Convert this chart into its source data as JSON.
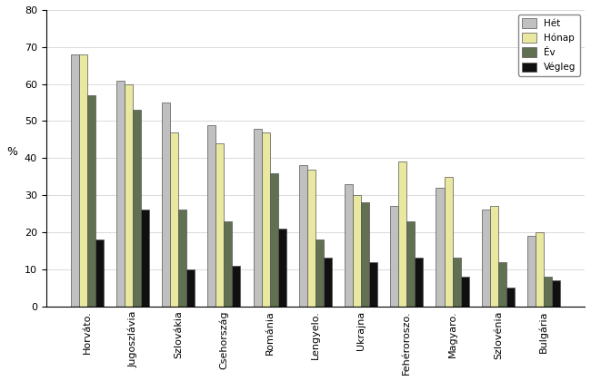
{
  "countries": [
    "Horváto.",
    "Jugoszlávia",
    "Szlovákia",
    "Csehország",
    "Románia",
    "Lengyelo.",
    "Ukrajna",
    "Fehéroroszo.",
    "Magyaro.",
    "Szlovénia",
    "Bulgária"
  ],
  "series": {
    "Hét": [
      68,
      61,
      55,
      49,
      48,
      38,
      33,
      27,
      32,
      26,
      19
    ],
    "Hónap": [
      68,
      60,
      47,
      44,
      47,
      37,
      30,
      39,
      35,
      27,
      20
    ],
    "Év": [
      57,
      53,
      26,
      23,
      36,
      18,
      28,
      23,
      13,
      12,
      8
    ],
    "Végleg": [
      18,
      26,
      10,
      11,
      21,
      13,
      12,
      13,
      8,
      5,
      7
    ]
  },
  "colors": {
    "Hét": "#c0c0c0",
    "Hónap": "#e8e8a0",
    "Év": "#607050",
    "Végleg": "#101010"
  },
  "ylabel": "%",
  "ylim": [
    0,
    80
  ],
  "yticks": [
    0,
    10,
    20,
    30,
    40,
    50,
    60,
    70,
    80
  ],
  "bar_width": 0.18,
  "figsize": [
    6.5,
    4.2
  ],
  "background_color": "#ffffff",
  "chart_bg": "#ffffff",
  "grid_color": "#cccccc"
}
